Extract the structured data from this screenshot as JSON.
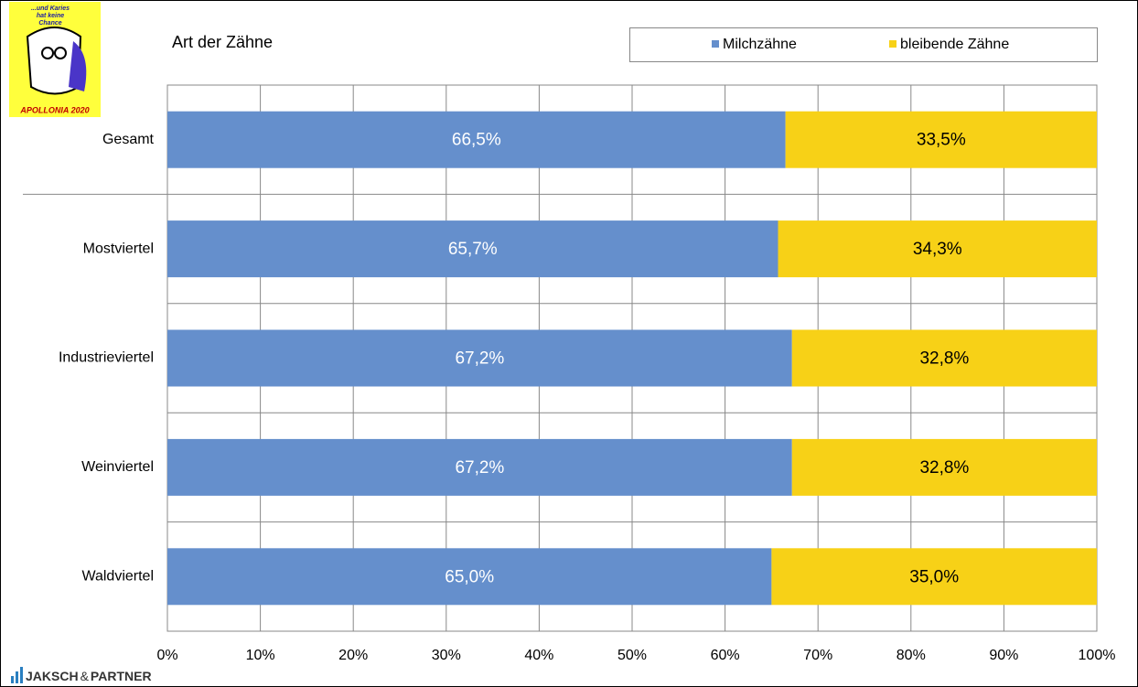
{
  "chart_data": {
    "type": "bar",
    "orientation": "horizontal",
    "stacked": true,
    "title": "Art der Zähne",
    "categories": [
      "Gesamt",
      "Mostviertel",
      "Industrieviertel",
      "Weinviertel",
      "Waldviertel"
    ],
    "series": [
      {
        "name": "Milchzähne",
        "color": "#658fcc",
        "values": [
          66.5,
          65.7,
          67.2,
          67.2,
          65.0
        ],
        "value_labels": [
          "66,5%",
          "65,7%",
          "67,2%",
          "67,2%",
          "65,0%"
        ]
      },
      {
        "name": "bleibende Zähne",
        "color": "#f7d117",
        "values": [
          33.5,
          34.3,
          32.8,
          32.8,
          35.0
        ],
        "value_labels": [
          "33,5%",
          "34,3%",
          "32,8%",
          "32,8%",
          "35,0%"
        ]
      }
    ],
    "xlim": [
      0,
      100
    ],
    "xticks": [
      {
        "value": 0,
        "label": "0%"
      },
      {
        "value": 10,
        "label": "10%"
      },
      {
        "value": 20,
        "label": "20%"
      },
      {
        "value": 30,
        "label": "30%"
      },
      {
        "value": 40,
        "label": "40%"
      },
      {
        "value": 50,
        "label": "50%"
      },
      {
        "value": 60,
        "label": "60%"
      },
      {
        "value": 70,
        "label": "70%"
      },
      {
        "value": 80,
        "label": "80%"
      },
      {
        "value": 90,
        "label": "90%"
      },
      {
        "value": 100,
        "label": "100%"
      }
    ],
    "grid": true,
    "legend": "top-right"
  },
  "logo": {
    "slogan": [
      "...und Karies",
      "hat keine",
      "Chance"
    ],
    "name": "APOLLONIA 2020"
  },
  "footer": {
    "brand": "JAKSCH",
    "amp": "&",
    "partner": "PARTNER"
  }
}
